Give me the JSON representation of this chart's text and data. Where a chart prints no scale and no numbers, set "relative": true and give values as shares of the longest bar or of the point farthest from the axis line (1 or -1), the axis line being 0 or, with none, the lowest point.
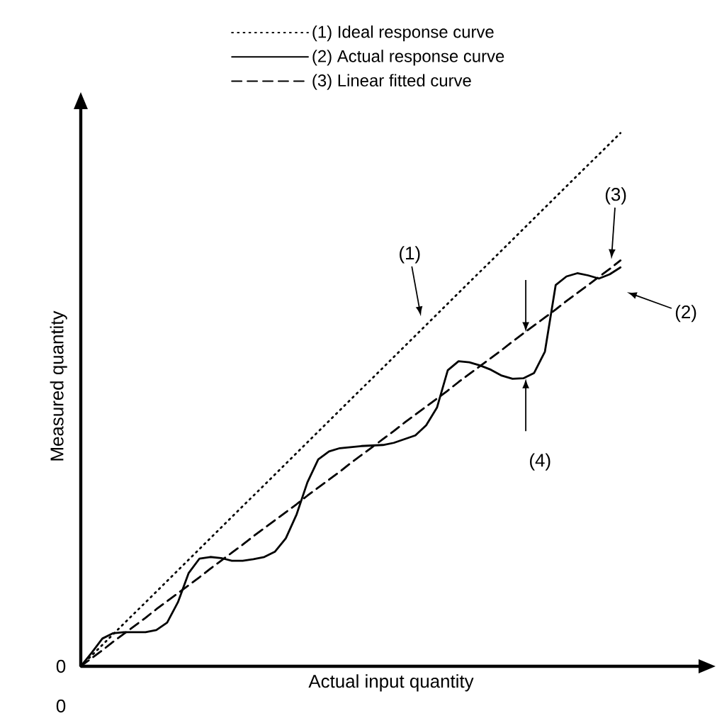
{
  "chart_data": {
    "type": "line",
    "relative": true,
    "xlabel": "Actual input quantity",
    "ylabel": "Measured quantity",
    "categories": [
      null,
      null,
      null,
      null,
      null,
      null,
      null,
      null,
      null,
      null,
      null,
      null,
      null,
      null,
      null,
      null,
      null,
      null,
      null,
      null,
      null,
      null,
      null,
      null,
      null,
      null,
      null,
      null,
      null,
      null,
      null,
      null,
      null,
      null,
      null,
      null,
      null,
      null,
      null,
      null,
      null,
      null,
      null,
      null,
      null,
      null,
      null,
      null,
      null,
      null,
      null
    ],
    "legend": "top",
    "marker": "none",
    "series": [
      {
        "name": "(1) Ideal response curve",
        "color": "#000000",
        "line_style": "dotted",
        "values": [
          0,
          0.02,
          0.04,
          0.06,
          0.08,
          0.1,
          0.12,
          0.14,
          0.16,
          0.18,
          0.2,
          0.22,
          0.24,
          0.26,
          0.28,
          0.3,
          0.32,
          0.34,
          0.36,
          0.38,
          0.4,
          0.42,
          0.44,
          0.46,
          0.48,
          0.5,
          0.52,
          0.54,
          0.56,
          0.58,
          0.6,
          0.62,
          0.64,
          0.66,
          0.68,
          0.7,
          0.72,
          0.74,
          0.76,
          0.78,
          0.8,
          0.82,
          0.84,
          0.86,
          0.88,
          0.9,
          0.92,
          0.94,
          0.96,
          0.98,
          1
        ]
      },
      {
        "name": "(2) Actual response curve",
        "color": "#000000",
        "line_style": "solid",
        "values": [
          0,
          0.025,
          0.052,
          0.062,
          0.064,
          0.064,
          0.064,
          0.068,
          0.082,
          0.12,
          0.175,
          0.202,
          0.205,
          0.203,
          0.198,
          0.198,
          0.201,
          0.205,
          0.215,
          0.24,
          0.285,
          0.345,
          0.388,
          0.403,
          0.409,
          0.411,
          0.413,
          0.414,
          0.415,
          0.419,
          0.426,
          0.433,
          0.452,
          0.485,
          0.555,
          0.572,
          0.57,
          0.564,
          0.556,
          0.545,
          0.539,
          0.54,
          0.55,
          0.59,
          0.715,
          0.731,
          0.737,
          0.733,
          0.727,
          0.735,
          0.748
        ]
      },
      {
        "name": "(3) Linear fitted curve",
        "color": "#000000",
        "line_style": "dashed",
        "values": [
          0,
          0.015,
          0.03,
          0.046,
          0.061,
          0.076,
          0.091,
          0.107,
          0.122,
          0.137,
          0.152,
          0.167,
          0.183,
          0.198,
          0.213,
          0.228,
          0.244,
          0.259,
          0.274,
          0.289,
          0.304,
          0.32,
          0.335,
          0.35,
          0.365,
          0.381,
          0.396,
          0.411,
          0.426,
          0.441,
          0.457,
          0.472,
          0.487,
          0.502,
          0.517,
          0.533,
          0.548,
          0.563,
          0.578,
          0.593,
          0.609,
          0.624,
          0.639,
          0.654,
          0.669,
          0.685,
          0.7,
          0.715,
          0.73,
          0.745,
          0.761
        ]
      }
    ],
    "annotations": [
      "(1)",
      "(2)",
      "(3)",
      "(4)",
      "0",
      "0"
    ]
  }
}
